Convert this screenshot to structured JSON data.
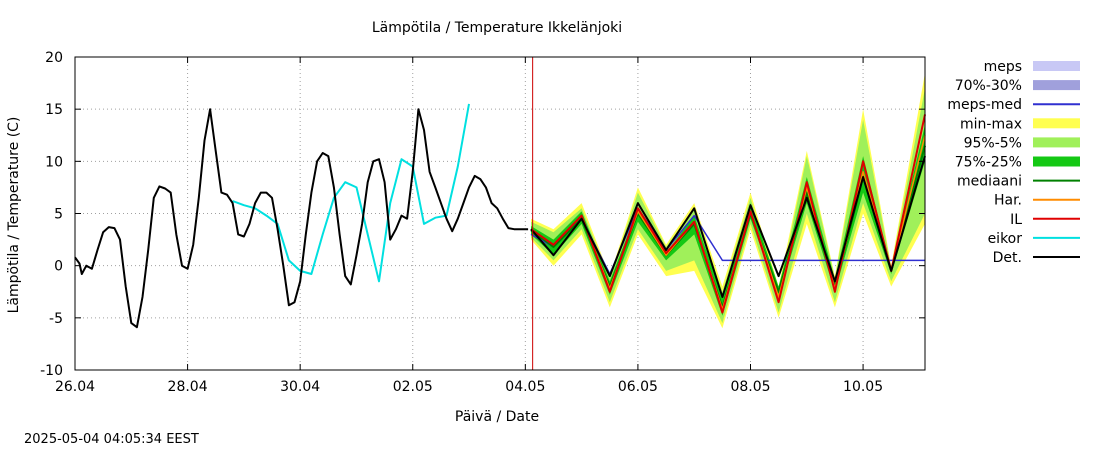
{
  "chart_data": {
    "type": "line",
    "title": "Lämpötila / Temperature   Ikkelänjoki",
    "xlabel": "Päivä / Date",
    "ylabel": "Lämpötila / Temperature (C)",
    "timestamp": "2025-05-04 04:05:34 EEST",
    "x_unit": "day of period (0 = 26.04 00:00)",
    "xlim": [
      0,
      15.1
    ],
    "ylim": [
      -10,
      20
    ],
    "yticks": [
      -10,
      -5,
      0,
      5,
      10,
      15,
      20
    ],
    "xticks": [
      {
        "x": 0,
        "label": "26.04"
      },
      {
        "x": 2,
        "label": "28.04"
      },
      {
        "x": 4,
        "label": "30.04"
      },
      {
        "x": 6,
        "label": "02.05"
      },
      {
        "x": 8,
        "label": "04.05"
      },
      {
        "x": 10,
        "label": "06.05"
      },
      {
        "x": 12,
        "label": "08.05"
      },
      {
        "x": 14,
        "label": "10.05"
      }
    ],
    "grid": true,
    "now_marker_x": 8.13,
    "legend_position": "right",
    "legend": [
      {
        "key": "meps",
        "label": "meps",
        "color": "#c8c8f5",
        "style": "box"
      },
      {
        "key": "p70_30",
        "label": "70%-30%",
        "color": "#a0a0dc",
        "style": "box"
      },
      {
        "key": "meps_med",
        "label": "meps-med",
        "color": "#3030d0",
        "style": "line"
      },
      {
        "key": "minmax",
        "label": "min-max",
        "color": "#ffff50",
        "style": "box"
      },
      {
        "key": "p95_5",
        "label": "95%-5%",
        "color": "#a0f05a",
        "style": "box"
      },
      {
        "key": "p75_25",
        "label": "75%-25%",
        "color": "#14c814",
        "style": "box"
      },
      {
        "key": "mediaani",
        "label": "mediaani",
        "color": "#008000",
        "style": "line"
      },
      {
        "key": "har",
        "label": "Har.",
        "color": "#ff8c00",
        "style": "line"
      },
      {
        "key": "il",
        "label": "IL",
        "color": "#e00000",
        "style": "line"
      },
      {
        "key": "eikor",
        "label": "eikor",
        "color": "#00e0e0",
        "style": "line"
      },
      {
        "key": "det",
        "label": "Det.",
        "color": "#000000",
        "style": "line"
      }
    ],
    "observed": {
      "det": {
        "x": [
          0,
          0.08,
          0.12,
          0.2,
          0.3,
          0.4,
          0.5,
          0.6,
          0.7,
          0.8,
          0.9,
          1.0,
          1.1,
          1.2,
          1.3,
          1.4,
          1.5,
          1.6,
          1.7,
          1.8,
          1.9,
          2.0,
          2.1,
          2.2,
          2.3,
          2.4,
          2.5,
          2.6,
          2.7,
          2.8,
          2.9,
          3.0,
          3.1,
          3.2,
          3.3,
          3.4,
          3.5,
          3.6,
          3.7,
          3.8,
          3.9,
          4.0,
          4.1,
          4.2,
          4.3,
          4.4,
          4.5,
          4.6,
          4.7,
          4.8,
          4.9,
          5.0,
          5.1,
          5.2,
          5.3,
          5.4,
          5.5,
          5.6,
          5.7,
          5.8,
          5.9,
          6.0,
          6.1,
          6.2,
          6.3,
          6.4,
          6.5,
          6.6,
          6.7,
          6.8,
          6.9,
          7.0,
          7.1,
          7.2,
          7.3,
          7.4,
          7.5,
          7.6,
          7.7,
          7.8,
          7.9,
          8.0,
          8.05
        ],
        "y": [
          0.8,
          0.2,
          -0.8,
          0,
          -0.3,
          1.5,
          3.2,
          3.7,
          3.6,
          2.5,
          -2,
          -5.5,
          -5.9,
          -3,
          1.5,
          6.5,
          7.6,
          7.4,
          7,
          3,
          0,
          -0.3,
          2,
          6.5,
          12,
          15,
          11,
          7,
          6.8,
          6,
          3,
          2.8,
          4,
          6,
          7,
          7,
          6.5,
          3.5,
          0,
          -3.8,
          -3.5,
          -1.5,
          3,
          7,
          10,
          10.8,
          10.5,
          7.5,
          3,
          -1,
          -1.8,
          1,
          4,
          8,
          10,
          10.2,
          8,
          2.5,
          3.5,
          4.8,
          4.5,
          9,
          15,
          13,
          9,
          7.5,
          6,
          4.5,
          3.3,
          4.5,
          6,
          7.5,
          8.6,
          8.3,
          7.5,
          6,
          5.5,
          4.5,
          3.6,
          3.5,
          3.5,
          3.5,
          3.5
        ]
      },
      "eikor": {
        "x": [
          2.8,
          3.0,
          3.2,
          3.4,
          3.6,
          3.8,
          4.0,
          4.2,
          4.4,
          4.6,
          4.8,
          5.0,
          5.2,
          5.4,
          5.6,
          5.8,
          6.0,
          6.2,
          6.4,
          6.6,
          6.8,
          7.0
        ],
        "y": [
          6.2,
          5.8,
          5.5,
          4.8,
          4.0,
          0.5,
          -0.5,
          -0.8,
          3.0,
          6.5,
          8.0,
          7.5,
          3.0,
          -1.5,
          6.0,
          10.2,
          9.5,
          4.0,
          4.6,
          4.8,
          9.5,
          15.5
        ]
      }
    },
    "forecast": {
      "x": [
        8.1,
        8.5,
        9.0,
        9.5,
        10.0,
        10.5,
        11.0,
        11.5,
        12.0,
        12.5,
        13.0,
        13.5,
        14.0,
        14.5,
        15.1
      ],
      "meps_med": [
        3.0,
        1.8,
        4.5,
        -0.8,
        5.5,
        1.5,
        4.8,
        0.5,
        0.5,
        0.5,
        0.5,
        0.5,
        0.5,
        0.5,
        0.5
      ],
      "minmax_low": [
        2.5,
        0.0,
        3.0,
        -4.0,
        3.0,
        -1.0,
        -0.5,
        -6.0,
        3.5,
        -5.0,
        4.0,
        -4.0,
        5.0,
        -2.0,
        4.0
      ],
      "minmax_high": [
        4.5,
        3.5,
        6.0,
        -1.0,
        7.5,
        2.0,
        6.0,
        -2.0,
        7.0,
        -2.0,
        11.0,
        -1.0,
        15.0,
        0.0,
        18.5
      ],
      "p95_5_low": [
        2.7,
        0.5,
        3.5,
        -3.5,
        3.5,
        -0.5,
        0.5,
        -5.5,
        4.0,
        -4.5,
        5.0,
        -3.5,
        6.0,
        -1.5,
        5.0
      ],
      "p95_5_high": [
        4.2,
        3.2,
        5.5,
        -1.2,
        7.0,
        1.8,
        5.5,
        -2.5,
        6.5,
        -2.5,
        10.5,
        -1.2,
        14.0,
        -0.2,
        17.0
      ],
      "p75_25_low": [
        3.0,
        1.0,
        4.0,
        -2.8,
        4.2,
        0.5,
        3.0,
        -4.8,
        4.5,
        -3.0,
        6.0,
        -2.5,
        7.0,
        -0.8,
        10.0
      ],
      "p75_25_high": [
        3.8,
        2.5,
        5.2,
        -1.5,
        5.5,
        1.2,
        4.8,
        -3.0,
        6.0,
        -2.0,
        8.5,
        -1.3,
        10.5,
        -0.2,
        13.5
      ],
      "mediaani": [
        3.4,
        1.8,
        4.5,
        -2.0,
        5.0,
        1.0,
        4.0,
        -4.0,
        5.0,
        -2.5,
        7.0,
        -2.0,
        8.5,
        -0.5,
        11.5
      ],
      "har": [
        3.5,
        2.0,
        4.8,
        -2.2,
        5.2,
        1.0,
        4.2,
        -4.2,
        5.2,
        -3.0,
        7.5,
        -2.2,
        9.0,
        -0.5,
        12.5
      ],
      "il": [
        3.5,
        2.0,
        4.8,
        -2.5,
        5.5,
        1.2,
        4.2,
        -4.5,
        5.2,
        -3.5,
        8.0,
        -2.5,
        10.0,
        -0.5,
        14.5
      ],
      "det": [
        3.5,
        1.0,
        4.5,
        -1.0,
        6.0,
        1.5,
        5.5,
        -3.0,
        5.8,
        -1.0,
        6.5,
        -1.5,
        8.5,
        -0.5,
        10.5
      ]
    }
  }
}
